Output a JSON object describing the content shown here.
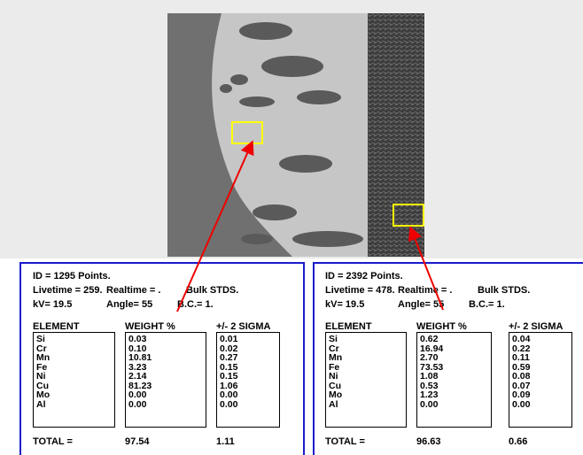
{
  "panels": [
    {
      "id": "ID = 1295 Points.",
      "livetime": "Livetime = 259.",
      "realtime": "Realtime = .",
      "stds": "Bulk STDS.",
      "kv": "kV= 19.5",
      "angle": "Angle= 55",
      "bc": "B.C.= 1.",
      "headers": [
        "ELEMENT",
        "WEIGHT %",
        "+/- 2 SIGMA"
      ],
      "elements": [
        "Si",
        "Cr",
        "Mn",
        "Fe",
        "Ni",
        "Cu",
        "Mo",
        "Al"
      ],
      "weights": [
        "0.03",
        "0.10",
        "10.81",
        "3.23",
        "2.14",
        "81.23",
        "0.00",
        "0.00"
      ],
      "sigmas": [
        "0.01",
        "0.02",
        "0.27",
        "0.15",
        "0.15",
        "1.06",
        "0.00",
        "0.00"
      ],
      "total_label": "TOTAL =",
      "total_weight": "97.54",
      "total_sigma": "1.11"
    },
    {
      "id": "ID = 2392 Points.",
      "livetime": "Livetime = 478.",
      "realtime": "Realtime = .",
      "stds": "Bulk STDS.",
      "kv": "kV= 19.5",
      "angle": "Angle= 55",
      "bc": "B.C.= 1.",
      "headers": [
        "ELEMENT",
        "WEIGHT %",
        "+/- 2 SIGMA"
      ],
      "elements": [
        "Si",
        "Cr",
        "Mn",
        "Fe",
        "Ni",
        "Cu",
        "Mo",
        "Al"
      ],
      "weights": [
        "0.62",
        "16.94",
        "2.70",
        "73.53",
        "1.08",
        "0.53",
        "1.23",
        "0.00"
      ],
      "sigmas": [
        "0.04",
        "0.22",
        "0.11",
        "0.59",
        "0.08",
        "0.07",
        "0.09",
        "0.00"
      ],
      "total_label": "TOTAL =",
      "total_weight": "96.63",
      "total_sigma": "0.66"
    }
  ]
}
